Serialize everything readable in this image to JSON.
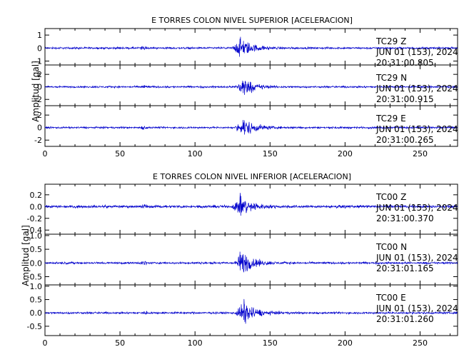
{
  "figure": {
    "ylabel": "Amplitud [gal]"
  },
  "chart_data": [
    {
      "type": "line",
      "title": "E TORRES COLON NIVEL SUPERIOR [ACELERACION]",
      "xlabel": "",
      "ylabel": "Amplitud [gal]",
      "xlim": [
        0,
        275
      ],
      "x_ticks": [
        "0",
        "50",
        "100",
        "150",
        "200",
        "250"
      ],
      "traces": [
        {
          "station": "TC29",
          "component": "Z",
          "date": "JUN 01 (153), 2024",
          "time": "20:31:00.805",
          "ylim": [
            -1.3,
            1.5
          ],
          "y_ticks": [
            "1",
            "0",
            "-1"
          ],
          "y_tick_values": [
            1,
            0,
            -1
          ],
          "peak_amplitude": 1.3,
          "noise_amplitude": 0.1,
          "event_onset_s": 124,
          "event_peak_s": 130
        },
        {
          "station": "TC29",
          "component": "N",
          "date": "JUN 01 (153), 2024",
          "time": "20:31:00.915",
          "ylim": [
            -3,
            3.5
          ],
          "y_ticks": [
            "2",
            "0",
            "-2"
          ],
          "y_tick_values": [
            2,
            0,
            -2
          ],
          "peak_amplitude": 2.6,
          "noise_amplitude": 0.2,
          "event_onset_s": 126,
          "event_peak_s": 131
        },
        {
          "station": "TC29",
          "component": "E",
          "date": "JUN 01 (153), 2024",
          "time": "20:31:00.265",
          "ylim": [
            -3,
            3.5
          ],
          "y_ticks": [
            "2",
            "0",
            "-2"
          ],
          "y_tick_values": [
            2,
            0,
            -2
          ],
          "peak_amplitude": 2.4,
          "noise_amplitude": 0.2,
          "event_onset_s": 126,
          "event_peak_s": 132
        }
      ]
    },
    {
      "type": "line",
      "title": "E TORRES COLON NIVEL INFERIOR [ACELERACION]",
      "xlabel": "",
      "ylabel": "Amplitud [gal]",
      "xlim": [
        0,
        275
      ],
      "x_ticks": [
        "0",
        "50",
        "100",
        "150",
        "200",
        "250"
      ],
      "traces": [
        {
          "station": "TC00",
          "component": "Z",
          "date": "JUN 01 (153), 2024",
          "time": "20:31:00.370",
          "ylim": [
            -0.47,
            0.38
          ],
          "y_ticks": [
            "0.2",
            "0.0",
            "-0.2",
            "-0.4"
          ],
          "y_tick_values": [
            0.2,
            0.0,
            -0.2,
            -0.4
          ],
          "peak_amplitude": 0.3,
          "noise_amplitude": 0.03,
          "event_onset_s": 124,
          "event_peak_s": 130
        },
        {
          "station": "TC00",
          "component": "N",
          "date": "JUN 01 (153), 2024",
          "time": "20:31:01.165",
          "ylim": [
            -0.8,
            1.05
          ],
          "y_ticks": [
            "1.0",
            "0.5",
            "0.0",
            "-0.5"
          ],
          "y_tick_values": [
            1.0,
            0.5,
            0.0,
            -0.5
          ],
          "peak_amplitude": 0.75,
          "noise_amplitude": 0.05,
          "event_onset_s": 126,
          "event_peak_s": 131
        },
        {
          "station": "TC00",
          "component": "E",
          "date": "JUN 01 (153), 2024",
          "time": "20:31:01.260",
          "ylim": [
            -0.85,
            1.05
          ],
          "y_ticks": [
            "1.0",
            "0.5",
            "0.0",
            "-0.5"
          ],
          "y_tick_values": [
            1.0,
            0.5,
            0.0,
            -0.5
          ],
          "peak_amplitude": 0.75,
          "noise_amplitude": 0.05,
          "event_onset_s": 126,
          "event_peak_s": 132
        }
      ]
    }
  ],
  "colors": {
    "trace": "#0000cc",
    "axes": "#000000",
    "background": "#ffffff"
  }
}
